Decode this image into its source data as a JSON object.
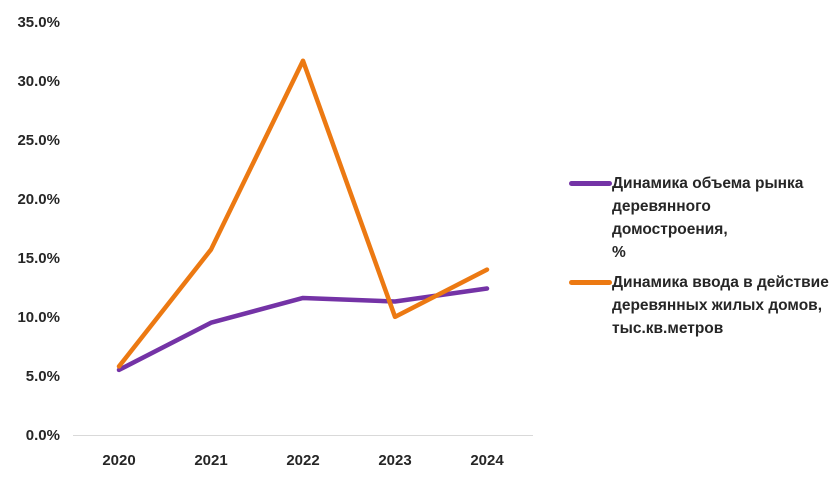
{
  "colors": {
    "background": "#ffffff",
    "axis_line": "#d9d9d9",
    "tick_text": "#262626",
    "legend_text": "#262626",
    "series_purple": "#7433a6",
    "series_orange": "#ec7912"
  },
  "chart_data": {
    "type": "line",
    "categories": [
      "2020",
      "2021",
      "2022",
      "2023",
      "2024"
    ],
    "series": [
      {
        "name": "Динамика объема рынка деревянного домостроения, %",
        "label_lines": [
          "Динамика объема рынка",
          "деревянного домостроения,",
          "%"
        ],
        "color": "#7433a6",
        "values": [
          5.6,
          9.6,
          11.7,
          11.4,
          12.5
        ]
      },
      {
        "name": "Динамика ввода в действие деревянных жилых домов, тыс.кв.метров",
        "label_lines": [
          "Динамика ввода в действие",
          "деревянных жилых домов,",
          "тыс.кв.метров"
        ],
        "color": "#ec7912",
        "values": [
          5.9,
          15.8,
          31.8,
          10.1,
          14.1
        ]
      }
    ],
    "title": "",
    "xlabel": "",
    "ylabel": "",
    "ylim": [
      0,
      35
    ],
    "ytick_step": 5,
    "ytick_labels": [
      "0.0%",
      "5.0%",
      "10.0%",
      "15.0%",
      "20.0%",
      "25.0%",
      "30.0%",
      "35.0%"
    ],
    "grid": false,
    "legend_position": "right"
  }
}
